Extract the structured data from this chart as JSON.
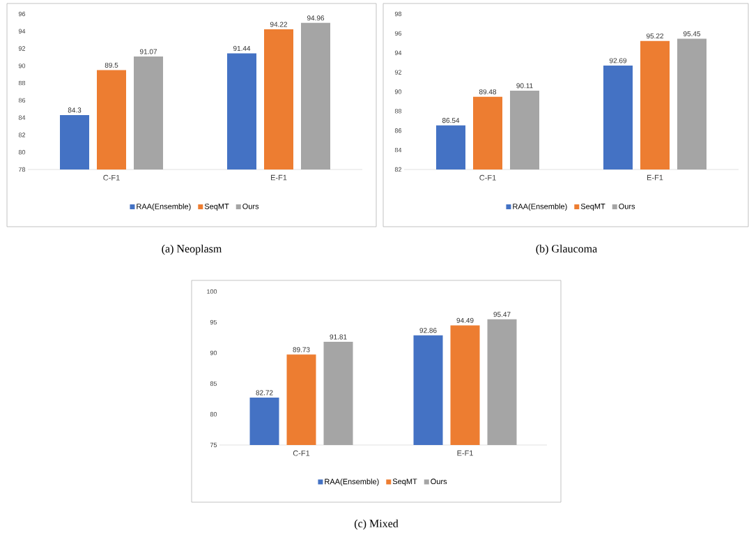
{
  "chart_data": [
    {
      "type": "bar",
      "categories": [
        "C-F1",
        "E-F1"
      ],
      "series": [
        {
          "name": "RAA(Ensemble)",
          "color": "#4472c4",
          "values": [
            84.3,
            91.44
          ]
        },
        {
          "name": "SeqMT",
          "color": "#ed7d31",
          "values": [
            89.5,
            94.22
          ]
        },
        {
          "name": "Ours",
          "color": "#a5a5a5",
          "values": [
            91.07,
            94.96
          ]
        }
      ],
      "ylim": [
        78,
        96
      ],
      "yticks": [
        78,
        80,
        82,
        84,
        86,
        88,
        90,
        92,
        94,
        96
      ],
      "data_labels": true,
      "legend": "bottom",
      "annotations": [
        "(a)  Neoplasm"
      ]
    },
    {
      "type": "bar",
      "categories": [
        "C-F1",
        "E-F1"
      ],
      "series": [
        {
          "name": "RAA(Ensemble)",
          "color": "#4472c4",
          "values": [
            86.54,
            92.69
          ]
        },
        {
          "name": "SeqMT",
          "color": "#ed7d31",
          "values": [
            89.48,
            95.22
          ]
        },
        {
          "name": "Ours",
          "color": "#a5a5a5",
          "values": [
            90.11,
            95.45
          ]
        }
      ],
      "ylim": [
        82,
        98
      ],
      "yticks": [
        82,
        84,
        86,
        88,
        90,
        92,
        94,
        96,
        98
      ],
      "data_labels": true,
      "legend": "bottom",
      "annotations": [
        "(b)  Glaucoma"
      ]
    },
    {
      "type": "bar",
      "categories": [
        "C-F1",
        "E-F1"
      ],
      "series": [
        {
          "name": "RAA(Ensemble)",
          "color": "#4472c4",
          "values": [
            82.72,
            92.86
          ]
        },
        {
          "name": "SeqMT",
          "color": "#ed7d31",
          "values": [
            89.73,
            94.49
          ]
        },
        {
          "name": "Ours",
          "color": "#a5a5a5",
          "values": [
            91.81,
            95.47
          ]
        }
      ],
      "ylim": [
        75,
        100
      ],
      "yticks": [
        75,
        80,
        85,
        90,
        95,
        100
      ],
      "data_labels": true,
      "legend": "bottom",
      "annotations": [
        "(c)  Mixed"
      ]
    }
  ]
}
